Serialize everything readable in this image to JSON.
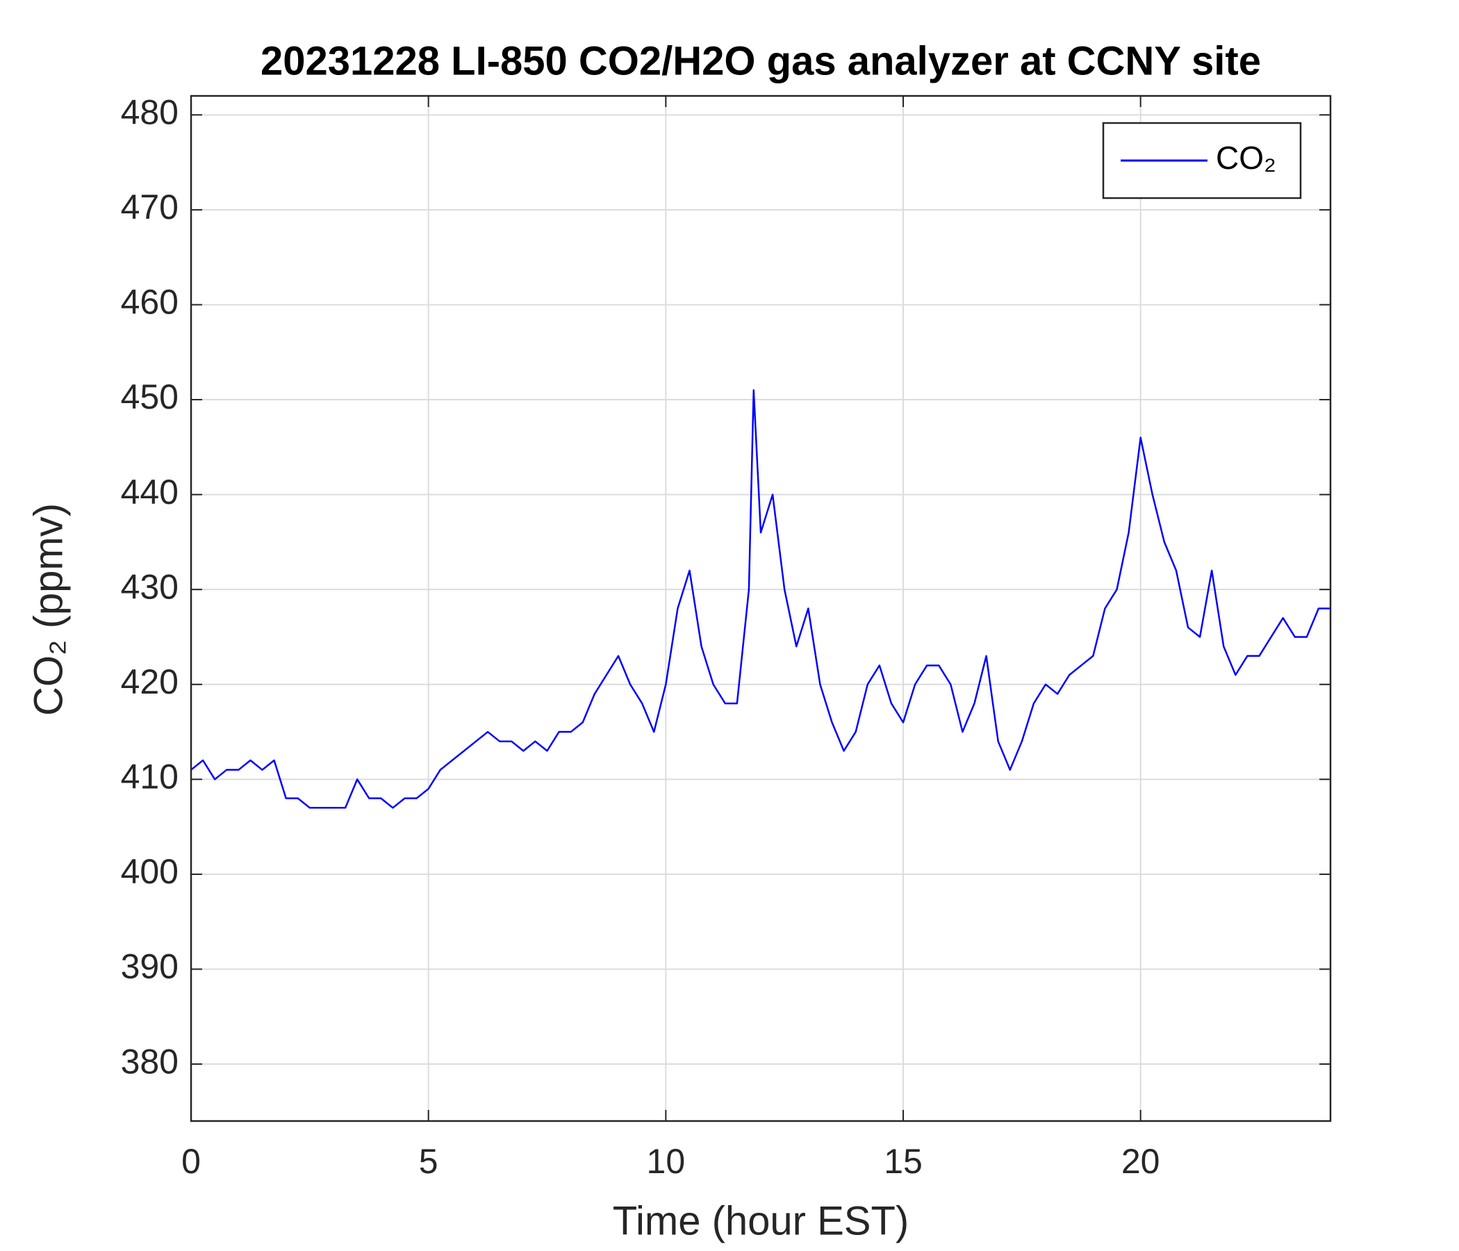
{
  "chart_data": {
    "type": "line",
    "title": "20231228 LI-850 CO2/H2O gas analyzer at CCNY site",
    "x_label": "Time (hour EST)",
    "y_label": "CO₂ (ppmv)",
    "x": [
      0,
      0.25,
      0.5,
      0.75,
      1,
      1.25,
      1.5,
      1.75,
      2,
      2.25,
      2.5,
      2.75,
      3,
      3.25,
      3.5,
      3.75,
      4,
      4.25,
      4.5,
      4.75,
      5,
      5.25,
      5.5,
      5.75,
      6,
      6.25,
      6.5,
      6.75,
      7,
      7.25,
      7.5,
      7.75,
      8,
      8.25,
      8.5,
      8.75,
      9,
      9.25,
      9.5,
      9.75,
      10,
      10.25,
      10.5,
      10.75,
      11,
      11.25,
      11.5,
      11.75,
      11.85,
      12,
      12.25,
      12.5,
      12.75,
      13,
      13.25,
      13.5,
      13.75,
      14,
      14.25,
      14.5,
      14.75,
      15,
      15.25,
      15.5,
      15.75,
      16,
      16.25,
      16.5,
      16.75,
      17,
      17.25,
      17.5,
      17.75,
      18,
      18.25,
      18.5,
      18.75,
      19,
      19.25,
      19.5,
      19.75,
      20,
      20.25,
      20.5,
      20.75,
      21,
      21.25,
      21.5,
      21.75,
      22,
      22.25,
      22.5,
      22.75,
      23,
      23.25,
      23.5,
      23.75,
      24
    ],
    "series": [
      {
        "name": "CO₂",
        "color": "#0000ff",
        "values": [
          411,
          412,
          410,
          411,
          411,
          412,
          411,
          412,
          408,
          408,
          407,
          407,
          407,
          407,
          410,
          408,
          408,
          407,
          408,
          408,
          409,
          411,
          412,
          413,
          414,
          415,
          414,
          414,
          413,
          414,
          413,
          415,
          415,
          416,
          419,
          421,
          423,
          420,
          418,
          415,
          420,
          428,
          432,
          424,
          420,
          418,
          418,
          430,
          451,
          436,
          440,
          430,
          424,
          428,
          420,
          416,
          413,
          415,
          420,
          422,
          418,
          416,
          420,
          422,
          422,
          420,
          415,
          418,
          423,
          414,
          411,
          414,
          418,
          420,
          419,
          421,
          422,
          423,
          428,
          430,
          436,
          446,
          440,
          435,
          432,
          426,
          425,
          432,
          424,
          421,
          423,
          423,
          425,
          427,
          425,
          425,
          428,
          428
        ]
      }
    ],
    "xlim": [
      0,
      24
    ],
    "ylim": [
      374,
      482
    ],
    "xticks": [
      0,
      5,
      10,
      15,
      20
    ],
    "yticks": [
      380,
      390,
      400,
      410,
      420,
      430,
      440,
      450,
      460,
      470,
      480
    ],
    "grid": true,
    "legend": "upper right"
  }
}
